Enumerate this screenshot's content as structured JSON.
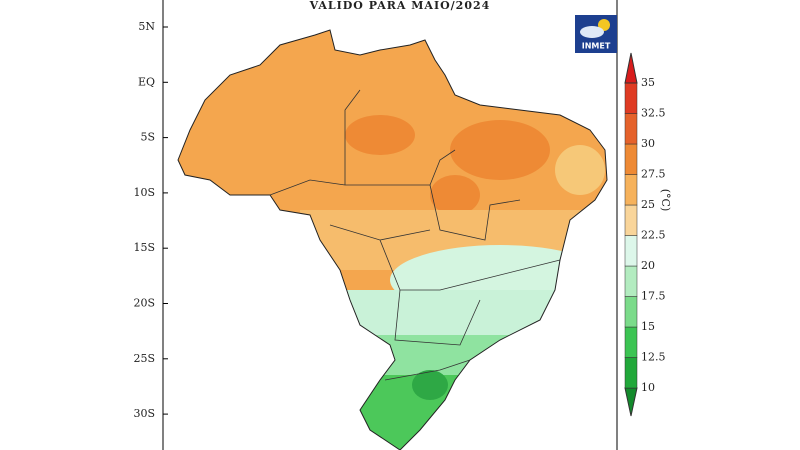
{
  "title": "VALIDO PARA MAIO/2024",
  "logo": "INMET",
  "latitude_labels": [
    "5N",
    "EQ",
    "5S",
    "10S",
    "15S",
    "20S",
    "25S",
    "30S"
  ],
  "colorbar": {
    "unit": "(°C)",
    "labels": [
      10,
      12.5,
      15,
      17.5,
      20,
      22.5,
      25,
      27.5,
      30,
      32.5,
      35
    ],
    "colors": [
      "#138a2c",
      "#21a83a",
      "#3cc453",
      "#7bdb8a",
      "#b3ecc0",
      "#ddf7ea",
      "#f9d59a",
      "#f6b25c",
      "#ee8a35",
      "#e5622b",
      "#df3b23",
      "#d81c1c"
    ]
  }
}
